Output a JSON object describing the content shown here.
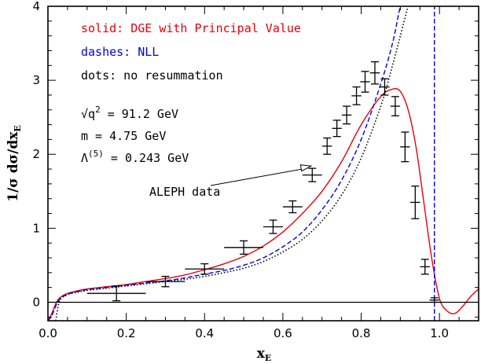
{
  "chart_data": {
    "type": "line",
    "xlabel": "x",
    "xlabel_sub": "E",
    "ylabel": "1/σ dσ/dx",
    "ylabel_sub": "E",
    "xlim": [
      0.0,
      1.1
    ],
    "ylim": [
      -0.25,
      4.0
    ],
    "x_ticks": [
      0.0,
      0.2,
      0.4,
      0.6,
      0.8,
      1.0
    ],
    "x_tick_labels": [
      "0.0",
      "0.2",
      "0.4",
      "0.6",
      "0.8",
      "1.0"
    ],
    "y_ticks": [
      0,
      1,
      2,
      3,
      4
    ],
    "y_tick_labels": [
      "0",
      "1",
      "2",
      "3",
      "4"
    ],
    "grid": false,
    "colors": {
      "solid": "#e8000b",
      "dashes": "#0000e6",
      "dots": "#000000",
      "data": "#000000"
    },
    "legend": [
      {
        "text": "solid: DGE with Principal Value",
        "color": "#e8000b"
      },
      {
        "text": "dashes: NLL",
        "color": "#0000e6"
      },
      {
        "text": "dots: no resummation",
        "color": "#000000"
      }
    ],
    "params": [
      {
        "main": "√q",
        "sup": "2",
        "rest": " = 91.2 GeV"
      },
      {
        "main": "m = 4.75 GeV",
        "sup": "",
        "rest": ""
      },
      {
        "main": "Λ",
        "sup": "(5)",
        "rest": " = 0.243 GeV"
      }
    ],
    "annotation": {
      "text": "ALEPH data",
      "arrow_to": [
        0.66,
        1.82
      ]
    },
    "series": [
      {
        "name": "DGE with Principal Value",
        "style": "solid",
        "color": "#e8000b",
        "x": [
          0.0,
          0.01,
          0.02,
          0.03,
          0.05,
          0.08,
          0.1,
          0.15,
          0.2,
          0.25,
          0.3,
          0.35,
          0.4,
          0.45,
          0.5,
          0.55,
          0.6,
          0.65,
          0.7,
          0.75,
          0.8,
          0.85,
          0.88,
          0.9,
          0.92,
          0.94,
          0.96,
          0.98,
          1.0,
          1.02,
          1.04,
          1.06,
          1.08,
          1.1
        ],
        "y": [
          -0.25,
          -0.15,
          -0.02,
          0.06,
          0.12,
          0.16,
          0.18,
          0.21,
          0.24,
          0.28,
          0.32,
          0.37,
          0.44,
          0.52,
          0.62,
          0.76,
          0.95,
          1.2,
          1.5,
          1.9,
          2.4,
          2.78,
          2.88,
          2.85,
          2.6,
          2.1,
          1.35,
          0.6,
          0.05,
          -0.12,
          -0.15,
          -0.05,
          0.08,
          0.18
        ]
      },
      {
        "name": "NLL",
        "style": "dashes",
        "color": "#0000e6",
        "x": [
          0.0,
          0.01,
          0.02,
          0.03,
          0.05,
          0.08,
          0.1,
          0.15,
          0.2,
          0.25,
          0.3,
          0.35,
          0.4,
          0.45,
          0.5,
          0.55,
          0.6,
          0.65,
          0.7,
          0.75,
          0.8,
          0.85,
          0.88,
          0.9,
          0.91
        ],
        "y": [
          -0.25,
          -0.18,
          -0.05,
          0.04,
          0.11,
          0.15,
          0.17,
          0.2,
          0.23,
          0.26,
          0.29,
          0.33,
          0.38,
          0.43,
          0.5,
          0.6,
          0.75,
          0.95,
          1.25,
          1.65,
          2.2,
          2.95,
          3.5,
          4.0,
          4.1
        ]
      },
      {
        "name": "NLL endpoint",
        "style": "dashes",
        "color": "#0000e6",
        "x": [
          0.987,
          0.987
        ],
        "y": [
          -0.25,
          4.0
        ]
      },
      {
        "name": "no resummation",
        "style": "dots",
        "color": "#000000",
        "x": [
          0.02,
          0.03,
          0.05,
          0.08,
          0.1,
          0.15,
          0.2,
          0.25,
          0.3,
          0.35,
          0.4,
          0.45,
          0.5,
          0.55,
          0.6,
          0.65,
          0.7,
          0.75,
          0.8,
          0.85,
          0.88,
          0.9,
          0.92,
          0.93
        ],
        "y": [
          -0.25,
          0.02,
          0.1,
          0.14,
          0.16,
          0.19,
          0.22,
          0.25,
          0.28,
          0.31,
          0.35,
          0.4,
          0.46,
          0.55,
          0.68,
          0.85,
          1.1,
          1.45,
          1.95,
          2.65,
          3.2,
          3.6,
          4.0,
          4.1
        ]
      }
    ],
    "data_points": {
      "name": "ALEPH data",
      "points": [
        {
          "x": 0.175,
          "y": 0.12,
          "xerr": 0.075,
          "yerr": 0.1
        },
        {
          "x": 0.3,
          "y": 0.28,
          "xerr": 0.05,
          "yerr": 0.07
        },
        {
          "x": 0.4,
          "y": 0.45,
          "xerr": 0.05,
          "yerr": 0.07
        },
        {
          "x": 0.5,
          "y": 0.74,
          "xerr": 0.05,
          "yerr": 0.09
        },
        {
          "x": 0.575,
          "y": 1.02,
          "xerr": 0.025,
          "yerr": 0.09
        },
        {
          "x": 0.625,
          "y": 1.29,
          "xerr": 0.025,
          "yerr": 0.08
        },
        {
          "x": 0.675,
          "y": 1.72,
          "xerr": 0.025,
          "yerr": 0.09
        },
        {
          "x": 0.713,
          "y": 2.11,
          "xerr": 0.0125,
          "yerr": 0.11
        },
        {
          "x": 0.738,
          "y": 2.35,
          "xerr": 0.0125,
          "yerr": 0.11
        },
        {
          "x": 0.763,
          "y": 2.53,
          "xerr": 0.0125,
          "yerr": 0.12
        },
        {
          "x": 0.788,
          "y": 2.79,
          "xerr": 0.0125,
          "yerr": 0.12
        },
        {
          "x": 0.81,
          "y": 2.98,
          "xerr": 0.0125,
          "yerr": 0.14
        },
        {
          "x": 0.835,
          "y": 3.1,
          "xerr": 0.0125,
          "yerr": 0.15
        },
        {
          "x": 0.86,
          "y": 2.91,
          "xerr": 0.0125,
          "yerr": 0.11
        },
        {
          "x": 0.887,
          "y": 2.65,
          "xerr": 0.0125,
          "yerr": 0.13
        },
        {
          "x": 0.912,
          "y": 2.1,
          "xerr": 0.0125,
          "yerr": 0.2
        },
        {
          "x": 0.938,
          "y": 1.35,
          "xerr": 0.0125,
          "yerr": 0.22
        },
        {
          "x": 0.963,
          "y": 0.48,
          "xerr": 0.0125,
          "yerr": 0.1
        },
        {
          "x": 0.987,
          "y": 0.03,
          "xerr": 0.0125,
          "yerr": 0.03
        }
      ]
    }
  }
}
